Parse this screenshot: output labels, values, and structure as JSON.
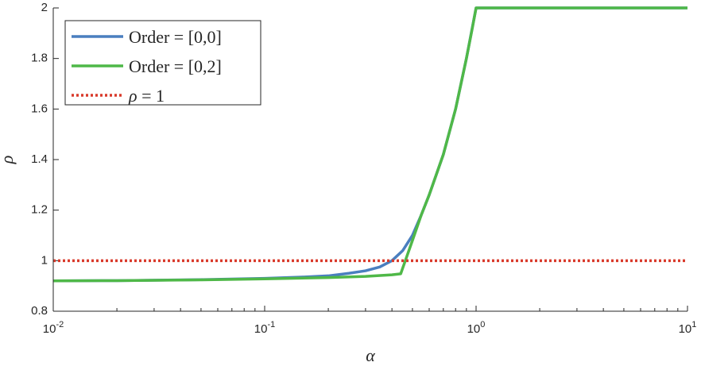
{
  "chart_data": {
    "type": "line",
    "xscale": "log",
    "xlim": [
      0.01,
      10
    ],
    "ylim": [
      0.8,
      2
    ],
    "xlabel": "α",
    "ylabel": "ρ",
    "xticks": [
      {
        "base": "10",
        "exp": "-2"
      },
      {
        "base": "10",
        "exp": "-1"
      },
      {
        "base": "10",
        "exp": "0"
      },
      {
        "base": "10",
        "exp": "1"
      }
    ],
    "yticks": [
      "0.8",
      "1",
      "1.2",
      "1.4",
      "1.6",
      "1.8",
      "2"
    ],
    "grid": false,
    "legend_position": "top-left",
    "legend": {
      "order00": "Order = [0,0]",
      "order02": "Order = [0,2]",
      "rho_sym": "ρ",
      "rho_rest": " = 1"
    },
    "series": [
      {
        "name": "Order = [0,0]",
        "color": "#4a7fbf",
        "style": "solid",
        "x": [
          0.01,
          0.02,
          0.05,
          0.1,
          0.15,
          0.2,
          0.25,
          0.3,
          0.35,
          0.4,
          0.45,
          0.5,
          0.55,
          0.6,
          0.7,
          0.8,
          0.9,
          1.0,
          2,
          5,
          10
        ],
        "y": [
          0.92,
          0.921,
          0.925,
          0.93,
          0.935,
          0.94,
          0.95,
          0.96,
          0.975,
          1.0,
          1.04,
          1.1,
          1.18,
          1.26,
          1.42,
          1.6,
          1.8,
          2.0,
          2.0,
          2.0,
          2.0
        ]
      },
      {
        "name": "Order = [0,2]",
        "color": "#4fb848",
        "style": "solid",
        "x": [
          0.01,
          0.02,
          0.05,
          0.1,
          0.2,
          0.3,
          0.4,
          0.44,
          0.5,
          0.55,
          0.6,
          0.7,
          0.8,
          0.9,
          0.96,
          1.0,
          2,
          5,
          10
        ],
        "y": [
          0.92,
          0.921,
          0.924,
          0.928,
          0.933,
          0.938,
          0.944,
          0.948,
          1.08,
          1.18,
          1.26,
          1.42,
          1.6,
          1.8,
          1.92,
          2.0,
          2.0,
          2.0,
          2.0
        ]
      },
      {
        "name": "ρ = 1",
        "color": "#d93a2b",
        "style": "dotted",
        "x": [
          0.01,
          10
        ],
        "y": [
          1,
          1
        ]
      }
    ]
  }
}
